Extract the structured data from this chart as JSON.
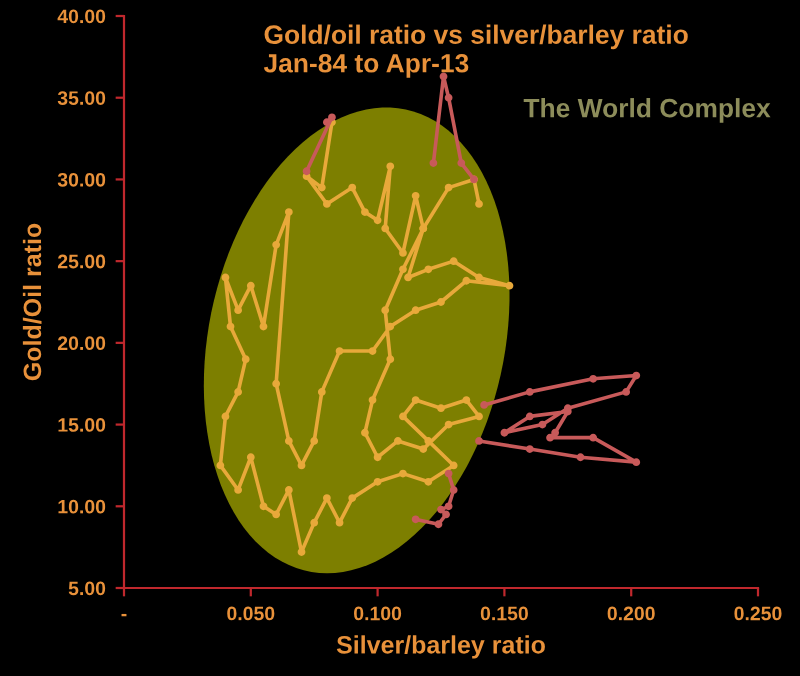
{
  "chart_data": {
    "type": "line",
    "title": "Gold/oil ratio vs silver/barley ratio",
    "subtitle": "Jan-84 to Apr-13",
    "xlabel": "Silver/barley ratio",
    "ylabel": "Gold/Oil ratio",
    "annotations": [
      "The World Complex"
    ],
    "xlim": [
      0,
      0.25
    ],
    "xticks": [
      {
        "value": 0,
        "label": "-"
      },
      {
        "value": 0.05,
        "label": "0.050"
      },
      {
        "value": 0.1,
        "label": "0.100"
      },
      {
        "value": 0.15,
        "label": "0.150"
      },
      {
        "value": 0.2,
        "label": "0.200"
      },
      {
        "value": 0.25,
        "label": "0.250"
      }
    ],
    "ylim": [
      5,
      40
    ],
    "yticks": [
      {
        "value": 5,
        "label": "5.00"
      },
      {
        "value": 10,
        "label": "10.00"
      },
      {
        "value": 15,
        "label": "15.00"
      },
      {
        "value": 20,
        "label": "20.00"
      },
      {
        "value": 25,
        "label": "25.00"
      },
      {
        "value": 30,
        "label": "30.00"
      },
      {
        "value": 35,
        "label": "35.00"
      },
      {
        "value": 40,
        "label": "40.00"
      }
    ],
    "grid": false,
    "legend": false,
    "marker": "circle",
    "line_style": "solid",
    "series": [
      {
        "color": "#e8a93a",
        "x": [
          0.082,
          0.078,
          0.072,
          0.08,
          0.09,
          0.095,
          0.1,
          0.105,
          0.103,
          0.11,
          0.115,
          0.118,
          0.112,
          0.12,
          0.13,
          0.14,
          0.152,
          0.135,
          0.125,
          0.115,
          0.105,
          0.098,
          0.085,
          0.078,
          0.075,
          0.07,
          0.065,
          0.06,
          0.065,
          0.06,
          0.055,
          0.05,
          0.045,
          0.04,
          0.042,
          0.048,
          0.045,
          0.04,
          0.038,
          0.045,
          0.05,
          0.055,
          0.06,
          0.065,
          0.07,
          0.075,
          0.08,
          0.085,
          0.09,
          0.1,
          0.11,
          0.12,
          0.13,
          0.12,
          0.11,
          0.115,
          0.125,
          0.135,
          0.14,
          0.128,
          0.118,
          0.108,
          0.1,
          0.095,
          0.098,
          0.105,
          0.103,
          0.11,
          0.118,
          0.128,
          0.138,
          0.14
        ],
        "values": [
          33.5,
          29.5,
          30.2,
          28.5,
          29.5,
          28,
          27.5,
          30.8,
          27,
          25.5,
          29,
          27,
          24,
          24.5,
          25,
          24,
          23.5,
          23.8,
          22.5,
          22,
          21,
          19.5,
          19.5,
          17,
          14,
          12.5,
          14,
          17.5,
          28,
          26,
          21,
          23.5,
          22,
          24,
          21,
          19,
          17,
          15.5,
          12.5,
          11,
          13,
          10,
          9.5,
          11,
          7.2,
          9,
          10.5,
          9,
          10.5,
          11.5,
          12,
          11.5,
          12.5,
          14,
          15.5,
          16.5,
          16,
          16.5,
          15.5,
          15,
          13.5,
          14,
          13,
          14.5,
          16.5,
          19,
          22,
          24.5,
          27,
          29.5,
          30,
          28.5
        ]
      },
      {
        "color": "#c85a5a",
        "x": [
          0.072,
          0.082,
          0.08,
          null,
          0.122,
          0.126,
          0.128,
          0.133,
          0.138,
          null,
          0.142,
          0.16,
          0.185,
          0.202,
          0.198,
          0.175,
          0.165,
          0.15,
          0.16,
          0.175,
          0.17,
          0.168,
          0.185,
          0.202,
          0.18,
          0.16,
          0.14,
          null,
          0.128,
          0.13,
          0.128,
          0.125,
          0.127,
          0.124,
          0.115
        ],
        "values": [
          30.5,
          33.8,
          33.5,
          null,
          31,
          36.3,
          35,
          31,
          30,
          null,
          16.2,
          17,
          17.8,
          18,
          17,
          16,
          15,
          14.5,
          15.5,
          15.8,
          14.5,
          14.2,
          14.2,
          12.7,
          13,
          13.5,
          14,
          null,
          12,
          11,
          10,
          9.8,
          9.5,
          8.9,
          9.2
        ]
      }
    ]
  }
}
